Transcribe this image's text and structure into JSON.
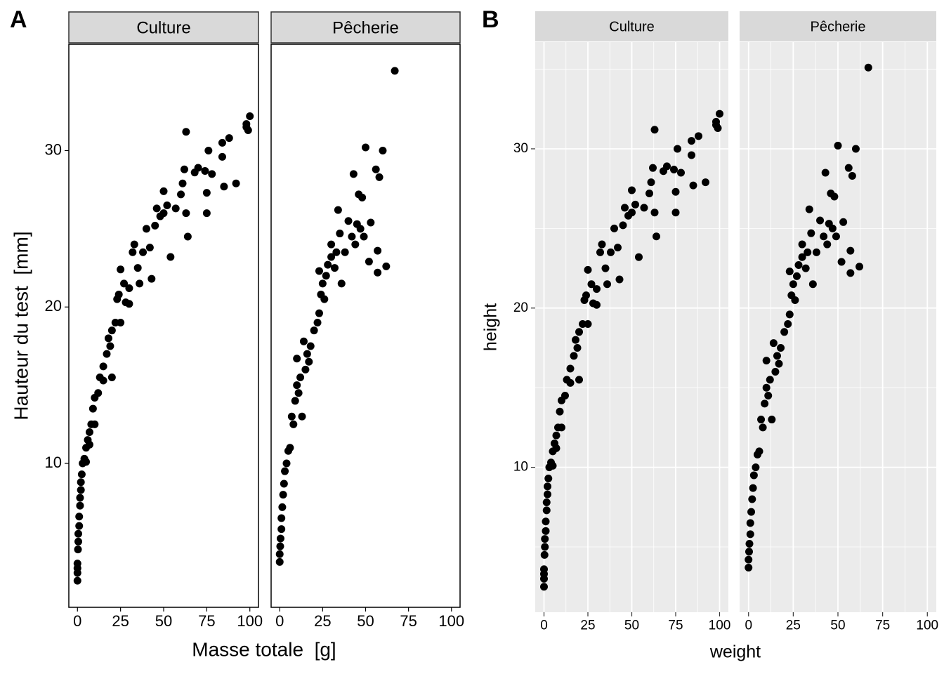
{
  "chart_data": [
    {
      "type": "scatter",
      "label": "A",
      "x_label": "Masse totale  [g]",
      "y_label": "Hauteur du test  [mm]",
      "xlim": [
        -5,
        105
      ],
      "ylim": [
        0.8,
        36.8
      ],
      "xticks": [
        0,
        25,
        50,
        75,
        100
      ],
      "yticks": [
        10,
        20,
        30
      ],
      "grid": false,
      "color": "#000000",
      "panels": [
        {
          "strip": "Culture",
          "x": [
            0,
            0,
            0,
            0,
            0.3,
            0.5,
            0.5,
            1,
            1,
            1.5,
            1.5,
            2,
            2,
            2.5,
            3,
            4,
            5,
            5,
            6,
            7,
            7,
            8,
            9,
            10,
            10,
            12,
            13,
            15,
            15,
            17,
            18,
            19,
            20,
            20,
            22,
            23,
            24,
            25,
            25,
            27,
            28,
            30,
            30,
            32,
            33,
            35,
            36,
            38,
            40,
            42,
            43,
            45,
            46,
            48,
            50,
            50,
            52,
            54,
            57,
            60,
            61,
            62,
            63,
            63,
            64,
            68,
            70,
            74,
            75,
            75,
            76,
            78,
            84,
            84,
            85,
            88,
            92,
            98,
            98,
            100,
            99
          ],
          "y": [
            2.5,
            3,
            3.3,
            3.6,
            4.5,
            5,
            5.5,
            6,
            6.6,
            7.3,
            7.8,
            8.3,
            8.8,
            9.3,
            10,
            10.3,
            11,
            10.1,
            11.5,
            12,
            11.2,
            12.5,
            13.5,
            14.2,
            12.5,
            14.5,
            15.5,
            15.3,
            16.2,
            17,
            18,
            17.5,
            18.5,
            15.5,
            19,
            20.5,
            20.8,
            22.4,
            19,
            21.5,
            20.3,
            21.2,
            20.2,
            23.5,
            24,
            22.5,
            21.5,
            23.5,
            25,
            23.8,
            21.8,
            25.2,
            26.3,
            25.8,
            27.4,
            26,
            26.5,
            23.2,
            26.3,
            27.2,
            27.9,
            28.8,
            31.2,
            26,
            24.5,
            28.6,
            28.9,
            28.7,
            27.3,
            26,
            30,
            28.5,
            30.5,
            29.6,
            27.7,
            30.8,
            27.9,
            31.5,
            31.7,
            32.2,
            31.3
          ]
        },
        {
          "strip": "Pêcherie",
          "x": [
            0,
            0,
            0.3,
            0.5,
            1,
            1,
            1.5,
            2,
            2.5,
            3,
            4,
            5,
            6,
            7,
            8,
            9,
            10,
            10,
            11,
            12,
            13,
            14,
            15,
            16,
            17,
            18,
            20,
            22,
            23,
            23,
            24,
            25,
            26,
            27,
            28,
            30,
            30,
            32,
            33,
            34,
            35,
            36,
            38,
            40,
            42,
            43,
            44,
            45,
            46,
            47,
            48,
            49,
            50,
            52,
            53,
            56,
            57,
            57,
            58,
            60,
            62,
            67
          ],
          "y": [
            3.7,
            4.2,
            4.7,
            5.2,
            5.8,
            6.5,
            7.2,
            8,
            8.7,
            9.5,
            10,
            10.8,
            11,
            13,
            12.5,
            14,
            15,
            16.7,
            14.5,
            15.5,
            13,
            17.8,
            16,
            17,
            16.5,
            17.5,
            18.5,
            19,
            19.6,
            22.3,
            20.8,
            21.5,
            20.5,
            22,
            22.7,
            24,
            23.2,
            22.5,
            23.5,
            26.2,
            24.7,
            21.5,
            23.5,
            25.5,
            24.5,
            28.5,
            24,
            25.3,
            27.2,
            25,
            27,
            24.5,
            30.2,
            22.9,
            25.4,
            28.8,
            23.6,
            22.2,
            28.3,
            30,
            22.6,
            35.1
          ]
        }
      ]
    },
    {
      "type": "scatter",
      "label": "B",
      "x_label": "weight",
      "y_label": "height",
      "xlim": [
        -5,
        105
      ],
      "ylim": [
        0.9,
        36.7
      ],
      "xticks": [
        0,
        25,
        50,
        75,
        100
      ],
      "yticks": [
        10,
        20,
        30
      ],
      "xminorticks": [
        12.5,
        37.5,
        62.5,
        87.5
      ],
      "yminorticks": [
        5,
        15,
        25,
        35
      ],
      "grid": true,
      "color": "#000000",
      "panels": [
        {
          "strip": "Culture",
          "x": [
            0,
            0,
            0,
            0,
            0.3,
            0.5,
            0.5,
            1,
            1,
            1.5,
            1.5,
            2,
            2,
            2.5,
            3,
            4,
            5,
            5,
            6,
            7,
            7,
            8,
            9,
            10,
            10,
            12,
            13,
            15,
            15,
            17,
            18,
            19,
            20,
            20,
            22,
            23,
            24,
            25,
            25,
            27,
            28,
            30,
            30,
            32,
            33,
            35,
            36,
            38,
            40,
            42,
            43,
            45,
            46,
            48,
            50,
            50,
            52,
            54,
            57,
            60,
            61,
            62,
            63,
            63,
            64,
            68,
            70,
            74,
            75,
            75,
            76,
            78,
            84,
            84,
            85,
            88,
            92,
            98,
            98,
            100,
            99
          ],
          "y": [
            2.5,
            3,
            3.3,
            3.6,
            4.5,
            5,
            5.5,
            6,
            6.6,
            7.3,
            7.8,
            8.3,
            8.8,
            9.3,
            10,
            10.3,
            11,
            10.1,
            11.5,
            12,
            11.2,
            12.5,
            13.5,
            14.2,
            12.5,
            14.5,
            15.5,
            15.3,
            16.2,
            17,
            18,
            17.5,
            18.5,
            15.5,
            19,
            20.5,
            20.8,
            22.4,
            19,
            21.5,
            20.3,
            21.2,
            20.2,
            23.5,
            24,
            22.5,
            21.5,
            23.5,
            25,
            23.8,
            21.8,
            25.2,
            26.3,
            25.8,
            27.4,
            26,
            26.5,
            23.2,
            26.3,
            27.2,
            27.9,
            28.8,
            31.2,
            26,
            24.5,
            28.6,
            28.9,
            28.7,
            27.3,
            26,
            30,
            28.5,
            30.5,
            29.6,
            27.7,
            30.8,
            27.9,
            31.5,
            31.7,
            32.2,
            31.3
          ]
        },
        {
          "strip": "Pêcherie",
          "x": [
            0,
            0,
            0.3,
            0.5,
            1,
            1,
            1.5,
            2,
            2.5,
            3,
            4,
            5,
            6,
            7,
            8,
            9,
            10,
            10,
            11,
            12,
            13,
            14,
            15,
            16,
            17,
            18,
            20,
            22,
            23,
            23,
            24,
            25,
            26,
            27,
            28,
            30,
            30,
            32,
            33,
            34,
            35,
            36,
            38,
            40,
            42,
            43,
            44,
            45,
            46,
            47,
            48,
            49,
            50,
            52,
            53,
            56,
            57,
            57,
            58,
            60,
            62,
            67
          ],
          "y": [
            3.7,
            4.2,
            4.7,
            5.2,
            5.8,
            6.5,
            7.2,
            8,
            8.7,
            9.5,
            10,
            10.8,
            11,
            13,
            12.5,
            14,
            15,
            16.7,
            14.5,
            15.5,
            13,
            17.8,
            16,
            17,
            16.5,
            17.5,
            18.5,
            19,
            19.6,
            22.3,
            20.8,
            21.5,
            20.5,
            22,
            22.7,
            24,
            23.2,
            22.5,
            23.5,
            26.2,
            24.7,
            21.5,
            23.5,
            25.5,
            24.5,
            28.5,
            24,
            25.3,
            27.2,
            25,
            27,
            24.5,
            30.2,
            22.9,
            25.4,
            28.8,
            23.6,
            22.2,
            28.3,
            30,
            22.6,
            35.1
          ]
        }
      ]
    }
  ]
}
